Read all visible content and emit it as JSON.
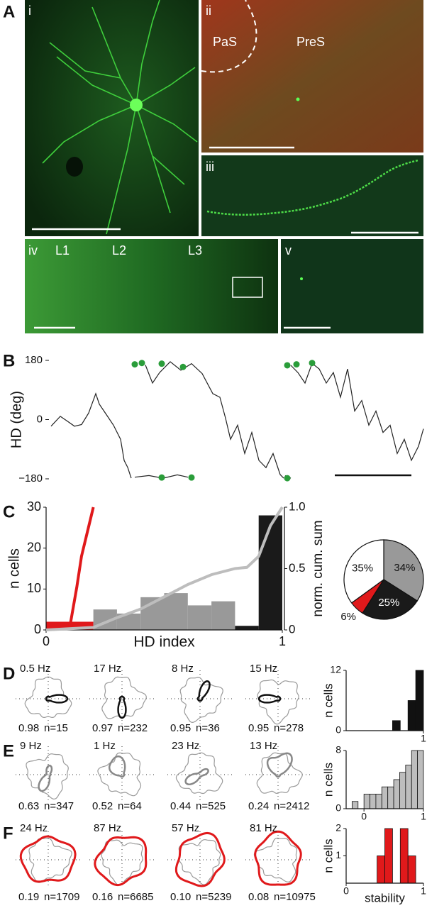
{
  "panel_a": {
    "label": "A",
    "image_labels": [
      "i",
      "ii",
      "iii",
      "iv",
      "v"
    ],
    "region_labels": [
      "PaS",
      "PreS"
    ],
    "layer_labels": [
      "L1",
      "L2",
      "L3"
    ]
  },
  "chart_data": [
    {
      "type": "line",
      "panel_label": "B",
      "ylabel": "HD (deg)",
      "color": "#222",
      "xlim": [
        0,
        525
      ],
      "ylim": [
        -180,
        180
      ],
      "yticks": [
        180,
        0,
        {
          "value": -180,
          "label": "−180"
        }
      ],
      "x": [
        0,
        13,
        23,
        33,
        43,
        53,
        63,
        68,
        78,
        88,
        98,
        103,
        108,
        113,
        115,
        118,
        138,
        158,
        178,
        193,
        195,
        133,
        143,
        153,
        168,
        183,
        198,
        213,
        228,
        238,
        246,
        253,
        263,
        273,
        283,
        293,
        303,
        313,
        323,
        328,
        329,
        330,
        338,
        338,
        338,
        348,
        358,
        368,
        378,
        388,
        398,
        408,
        418,
        428,
        438,
        448,
        458,
        468,
        478,
        488,
        498,
        508,
        518,
        525
      ],
      "values": [
        -20,
        10,
        -5,
        -20,
        -15,
        20,
        79,
        47,
        15,
        -17,
        -60,
        -124,
        -145,
        -178,
        null,
        -175,
        -170,
        -178,
        -168,
        -175,
        null,
        166,
        111,
        143,
        176,
        150,
        170,
        140,
        79,
        68,
        4,
        -60,
        -17,
        -103,
        -39,
        -124,
        -146,
        -103,
        -167,
        -178,
        null,
        -170,
        -178,
        null,
        165,
        143,
        111,
        171,
        154,
        111,
        143,
        68,
        154,
        26,
        58,
        -17,
        26,
        -39,
        -17,
        -103,
        -60,
        -124,
        -81,
        -28
      ],
      "spikes": {
        "color": "#2a9d3a",
        "x": [
          118,
          128,
          156,
          186,
          156,
          198,
          333,
          346,
          368,
          333
        ],
        "values": [
          168,
          172,
          170,
          160,
          -176,
          -176,
          165,
          168,
          172,
          -178
        ]
      }
    },
    {
      "type": "histogram",
      "panel_label": "C",
      "ylabel": "n cells",
      "xlabel": "HD index",
      "y2label": "norm. cum. sum",
      "bins": [
        0,
        0.1,
        0.2,
        0.3,
        0.4,
        0.5,
        0.6,
        0.7,
        0.8,
        0.9,
        1.0
      ],
      "values": [
        2,
        2,
        5,
        4,
        8,
        9,
        6,
        7,
        1,
        28
      ],
      "bar_colors": [
        "#e0191b",
        "#e0191b",
        "#999999",
        "#999999",
        "#999999",
        "#999999",
        "#999999",
        "#999999",
        "#1a1a1a",
        "#1a1a1a"
      ],
      "xlim": [
        0,
        1
      ],
      "xticks": [
        0,
        1
      ],
      "ylim": [
        0,
        30
      ],
      "yticks": [
        0,
        10,
        20,
        30
      ],
      "y2lim": [
        0,
        1
      ],
      "y2ticks": [
        0,
        0.5,
        {
          "value": 1,
          "label": "1.0"
        }
      ],
      "series": [
        {
          "color": "#e0191b",
          "axis": "y2",
          "x": [
            0.1,
            0.13,
            0.15,
            0.2
          ],
          "values": [
            0.02,
            0.35,
            0.6,
            1
          ]
        },
        {
          "color": "#bdbdbd",
          "axis": "y2",
          "x": [
            0,
            0.2,
            0.3,
            0.4,
            0.5,
            0.6,
            0.7,
            0.8,
            0.85,
            0.9,
            0.95,
            1
          ],
          "values": [
            0,
            0.02,
            0.1,
            0.17,
            0.27,
            0.37,
            0.45,
            0.5,
            0.51,
            0.6,
            0.85,
            1
          ]
        }
      ]
    },
    {
      "type": "pie",
      "values": [
        34,
        25,
        6,
        35
      ],
      "value_labels": [
        "34%",
        "25%",
        "6%",
        "35%"
      ],
      "colors": [
        "#999999",
        "#1a1a1a",
        "#e0191b",
        "#ffffff"
      ]
    },
    {
      "type": "histogram",
      "ylabel": "n cells",
      "color": "#111111",
      "bins": [
        0.6,
        0.7,
        0.8,
        0.9,
        1.0
      ],
      "values": [
        2,
        0,
        6,
        12
      ],
      "xlim": [
        0,
        1
      ],
      "xticks": [
        1
      ],
      "ylim": [
        0,
        12
      ],
      "yticks": [
        0,
        12
      ]
    },
    {
      "type": "histogram",
      "ylabel": "n cells",
      "color": "#bdbdbd",
      "bins": [
        -0.2,
        -0.1,
        0,
        0.1,
        0.2,
        0.3,
        0.4,
        0.5,
        0.6,
        0.7,
        0.8,
        0.9,
        1.0
      ],
      "values": [
        1,
        0,
        2,
        2,
        2,
        3,
        3,
        4,
        5,
        6,
        8,
        8
      ],
      "xlim": [
        -0.3,
        1
      ],
      "xticks": [
        0,
        1
      ],
      "ylim": [
        0,
        8
      ],
      "yticks": [
        0,
        8
      ]
    },
    {
      "type": "histogram",
      "ylabel": "n cells",
      "xlabel": "stability",
      "color": "#e0191b",
      "bins": [
        0.4,
        0.5,
        0.6,
        0.7,
        0.8,
        0.9
      ],
      "values": [
        1,
        2,
        0,
        2,
        1
      ],
      "xlim": [
        0,
        1
      ],
      "xticks": [
        0,
        1
      ],
      "ylim": [
        0,
        2
      ],
      "yticks": [
        1,
        2
      ]
    }
  ],
  "polar_rows": [
    {
      "label": "D",
      "color": "#111111",
      "cells": [
        {
          "rate": "0.5 Hz",
          "stability": "0.98",
          "n": "n=15"
        },
        {
          "rate": "17 Hz",
          "stability": "0.97",
          "n": "n=232"
        },
        {
          "rate": "8 Hz",
          "stability": "0.95",
          "n": "n=36"
        },
        {
          "rate": "15 Hz",
          "stability": "0.95",
          "n": "n=278"
        }
      ]
    },
    {
      "label": "E",
      "color": "#888888",
      "cells": [
        {
          "rate": "9 Hz",
          "stability": "0.63",
          "n": "n=347"
        },
        {
          "rate": "1 Hz",
          "stability": "0.52",
          "n": "n=64"
        },
        {
          "rate": "23 Hz",
          "stability": "0.44",
          "n": "n=525"
        },
        {
          "rate": "13 Hz",
          "stability": "0.24",
          "n": "n=2412"
        }
      ]
    },
    {
      "label": "F",
      "color": "#e0191b",
      "cells": [
        {
          "rate": "24 Hz",
          "stability": "0.19",
          "n": "n=1709"
        },
        {
          "rate": "87 Hz",
          "stability": "0.16",
          "n": "n=6685"
        },
        {
          "rate": "57 Hz",
          "stability": "0.10",
          "n": "n=5239"
        },
        {
          "rate": "81 Hz",
          "stability": "0.08",
          "n": "n=10975"
        }
      ]
    }
  ]
}
